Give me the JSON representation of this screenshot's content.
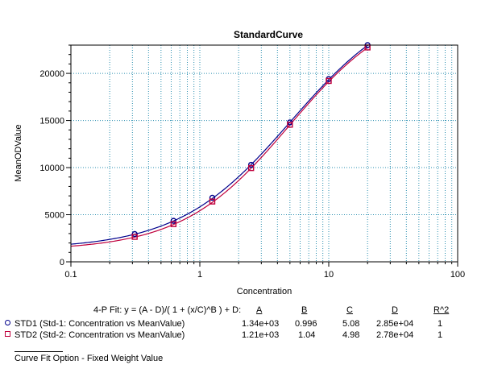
{
  "chart_data": {
    "type": "scatter",
    "title": "StandardCurve",
    "xlabel": "Concentration",
    "ylabel": "MeanODValue",
    "xscale": "log",
    "xlim": [
      0.1,
      100
    ],
    "ylim": [
      0,
      23000
    ],
    "x_ticks": [
      0.1,
      1,
      10,
      100
    ],
    "x_tick_labels": [
      "0.1",
      "1",
      "10",
      "100"
    ],
    "y_ticks": [
      0,
      5000,
      10000,
      15000,
      20000
    ],
    "y_tick_labels": [
      "0",
      "5000",
      "10000",
      "15000",
      "20000"
    ],
    "grid": true,
    "series": [
      {
        "name": "STD1 (Std-1: Concentration vs MeanValue)",
        "marker": "circle",
        "color": "#00008b",
        "x": [
          0.3125,
          0.625,
          1.25,
          2.5,
          5,
          10,
          20
        ],
        "y": [
          2950,
          4350,
          6800,
          10300,
          14800,
          19400,
          23000
        ],
        "fit": {
          "A": 1340,
          "B": 0.996,
          "C": 5.08,
          "D": 28500
        }
      },
      {
        "name": "STD2 (Std-2: Concentration vs MeanValue)",
        "marker": "square",
        "color": "#c0003c",
        "x": [
          0.3125,
          0.625,
          1.25,
          2.5,
          5,
          10,
          20
        ],
        "y": [
          2650,
          4000,
          6400,
          9950,
          14550,
          19200,
          22750
        ],
        "fit": {
          "A": 1210,
          "B": 1.04,
          "C": 4.98,
          "D": 27800
        }
      }
    ]
  },
  "fit_table": {
    "equation": "4-P Fit:  y = (A - D)/( 1 + (x/C)^B ) + D:",
    "headers": [
      "A",
      "B",
      "C",
      "D",
      "R^2"
    ],
    "rows": [
      {
        "label": "STD1 (Std-1: Concentration vs MeanValue)",
        "values": [
          "1.34e+03",
          "0.996",
          "5.08",
          "2.85e+04",
          "1"
        ]
      },
      {
        "label": "STD2 (Std-2: Concentration vs MeanValue)",
        "values": [
          "1.21e+03",
          "1.04",
          "4.98",
          "2.78e+04",
          "1"
        ]
      }
    ]
  },
  "footer": "Curve Fit Option - Fixed Weight Value"
}
